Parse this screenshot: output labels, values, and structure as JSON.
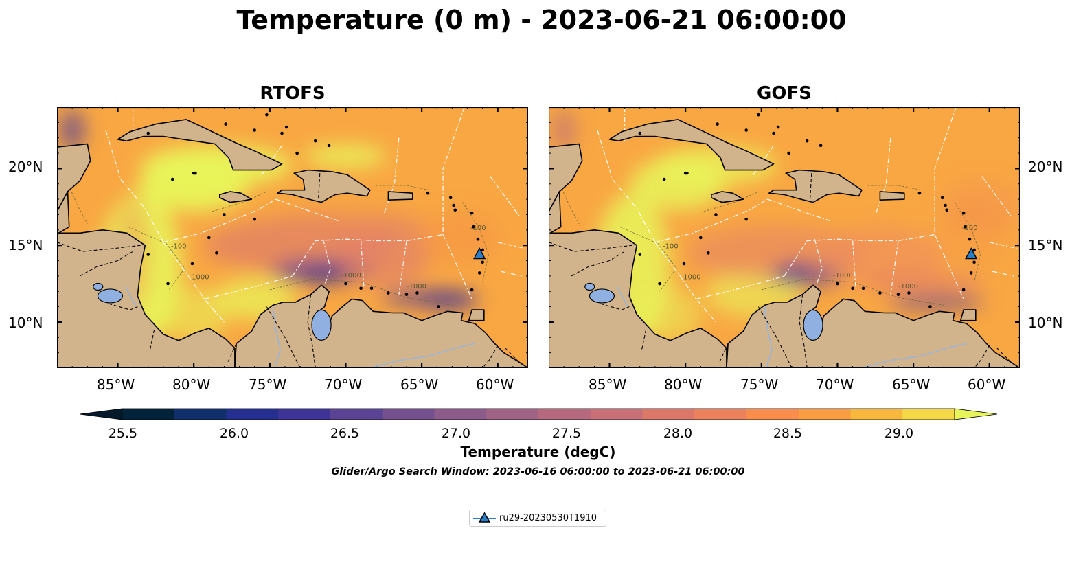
{
  "title": "Temperature (0 m) - 2023-06-21 06:00:00",
  "panels": [
    {
      "title": "RTOFS"
    },
    {
      "title": "GOFS"
    }
  ],
  "map": {
    "lon_range": [
      -89,
      -58
    ],
    "lat_range": [
      7,
      24
    ],
    "x_ticks": [
      "85°W",
      "80°W",
      "75°W",
      "70°W",
      "65°W",
      "60°W"
    ],
    "y_ticks": [
      "20°N",
      "15°N",
      "10°N"
    ],
    "land_color": "#d2b48c",
    "lake_color": "#8fb0e0",
    "sea_base_color": "#f9a743",
    "warm_shelf_color": "#e8f55a",
    "cool_pool_color": "#4a3b9a",
    "eez_line_color": "#ffffff",
    "contour_labels": [
      "-100",
      "-1000"
    ]
  },
  "colorbar": {
    "label": "Temperature (degC)",
    "min": 25.25,
    "max": 29.25,
    "step": 0.25,
    "extend": "both",
    "ticks": [
      "25.5",
      "26.0",
      "26.5",
      "27.0",
      "27.5",
      "28.0",
      "28.5",
      "29.0"
    ],
    "colors": [
      "#03233a",
      "#10306b",
      "#242f8f",
      "#3e3497",
      "#5b4394",
      "#74508f",
      "#8b5b89",
      "#9f6385",
      "#b5697f",
      "#c87077",
      "#dc786a",
      "#ec815e",
      "#f98d4e",
      "#fa9c41",
      "#f8b83d",
      "#f5d846"
    ],
    "under_color": "#04192b",
    "over_color": "#e8f55a"
  },
  "search_window": "Glider/Argo Search Window: 2023-06-16 06:00:00 to 2023-06-21 06:00:00",
  "glider": {
    "name": "ru29-20230530T1910",
    "lon": -61.2,
    "lat": 14.4,
    "color": "#2a7ec8"
  }
}
